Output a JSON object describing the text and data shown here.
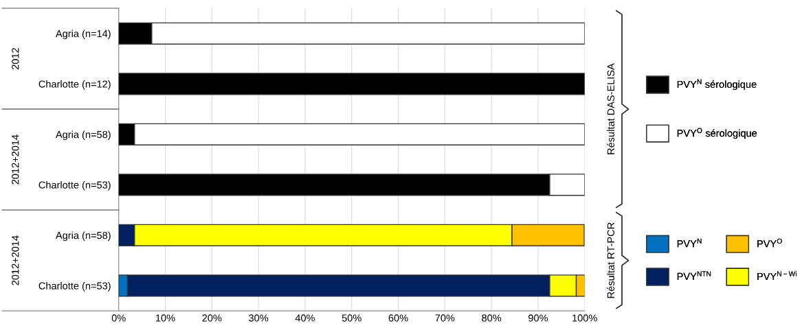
{
  "chart_data": {
    "type": "bar",
    "orientation": "horizontal",
    "stacked": true,
    "categories": [
      "Agria (n=14)",
      "Charlotte (n=12)",
      "Agria (n=58)",
      "Charlotte (n=53)",
      "Agria (n=58)",
      "Charlotte (n=53)"
    ],
    "series": [
      {
        "name": "PVY$^{N}$ sérologique",
        "color": "#000000",
        "values": [
          7.1,
          100,
          3.4,
          92.5,
          null,
          null
        ]
      },
      {
        "name": "PVY$^{O}$ sérologique",
        "color": "#ffffff",
        "values": [
          92.9,
          null,
          96.6,
          7.5,
          null,
          null
        ]
      },
      {
        "name": "PVY$^{N}$",
        "color": "#0070c0",
        "values": [
          null,
          null,
          null,
          null,
          null,
          1.9
        ]
      },
      {
        "name": "PVY$^{NTN}$",
        "color": "#002060",
        "values": [
          null,
          null,
          null,
          null,
          3.4,
          90.6
        ]
      },
      {
        "name": "PVY$^{N−Wi}$",
        "color": "#ffff00",
        "values": [
          null,
          null,
          null,
          null,
          81.0,
          5.7
        ]
      },
      {
        "name": "PVY$^{O}$",
        "color": "#ffc000",
        "values": [
          null,
          null,
          null,
          null,
          15.5,
          1.9
        ]
      }
    ],
    "xlim": [
      0,
      100
    ],
    "xticks": [
      {
        "value": 0,
        "label": "0%"
      },
      {
        "value": 10,
        "label": "10%"
      },
      {
        "value": 20,
        "label": "20%"
      },
      {
        "value": 30,
        "label": "30%"
      },
      {
        "value": 40,
        "label": "40%"
      },
      {
        "value": 50,
        "label": "50%"
      },
      {
        "value": 60,
        "label": "60%"
      },
      {
        "value": 70,
        "label": "70%"
      },
      {
        "value": 80,
        "label": "80%"
      },
      {
        "value": 90,
        "label": "90%"
      },
      {
        "value": 100,
        "label": "100%"
      }
    ],
    "grid": "x",
    "legend": "right",
    "annotations": [
      "2012",
      "2012+2014",
      "2012+2014",
      "Résultat DAS-ELISA",
      "Résultat RT-PCR"
    ]
  }
}
